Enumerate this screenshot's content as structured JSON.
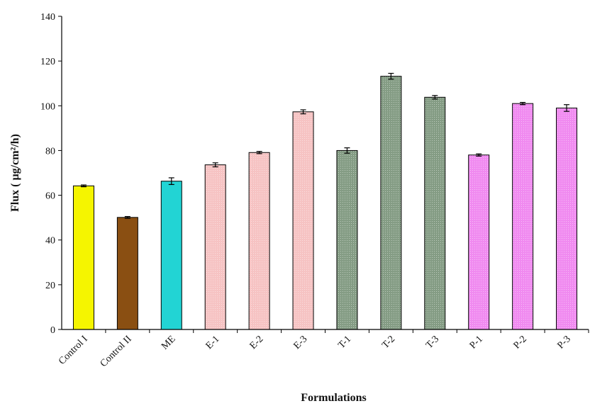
{
  "chart_data": {
    "type": "bar",
    "title": "",
    "xlabel": "Formulations",
    "ylabel": "Flux ( µg/cm²/h)",
    "ylim": [
      0,
      140
    ],
    "yticks": [
      0,
      20,
      40,
      60,
      80,
      100,
      120,
      140
    ],
    "grid": false,
    "categories": [
      "Control I",
      "Control II",
      "ME",
      "E-1",
      "E-2",
      "E-3",
      "T-1",
      "T-2",
      "T-3",
      "P-1",
      "P-2",
      "P-3"
    ],
    "values": [
      64.2,
      50.1,
      66.3,
      73.6,
      79.1,
      97.3,
      80.0,
      113.2,
      103.8,
      78.0,
      101.0,
      99.0
    ],
    "errors": [
      0.4,
      0.4,
      1.5,
      0.9,
      0.5,
      0.9,
      1.2,
      1.3,
      0.8,
      0.5,
      0.5,
      1.5
    ],
    "colors": [
      "#f5f500",
      "#8a4f12",
      "#22d4d4",
      "#f6c3c3",
      "#f6c3c3",
      "#f6c3c3",
      "#849c84",
      "#849c84",
      "#849c84",
      "#f08af0",
      "#f08af0",
      "#f08af0"
    ]
  }
}
